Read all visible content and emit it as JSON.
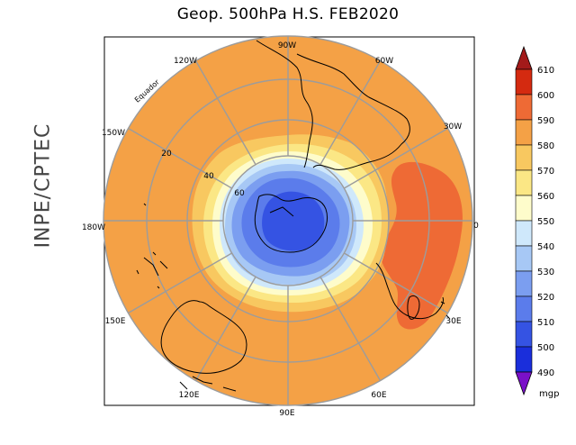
{
  "title": "Geop. 500hPa H.S. FEB2020",
  "side_label": "INPE/CPTEC",
  "equator_label": "Equador",
  "unit_label": "mgp",
  "longitude_labels": [
    "90W",
    "60W",
    "30W",
    "0",
    "30E",
    "60E",
    "90E",
    "120E",
    "150E",
    "180W",
    "150W",
    "120W"
  ],
  "latitude_labels": [
    "20",
    "40",
    "60"
  ],
  "colorbar": {
    "levels": [
      "610",
      "600",
      "590",
      "580",
      "570",
      "560",
      "550",
      "540",
      "530",
      "520",
      "510",
      "500",
      "490"
    ],
    "colors": {
      "above_610": "#a31a1a",
      "600_610": "#d42a10",
      "590_600": "#ee6a35",
      "580_590": "#f4a146",
      "570_580": "#f8c860",
      "560_570": "#fbe785",
      "550_560": "#fefccb",
      "540_550": "#cfe8fb",
      "530_540": "#a7c8f5",
      "520_530": "#7b9ef0",
      "510_520": "#5b7ceb",
      "500_510": "#3553e3",
      "490_500": "#1a2edb",
      "below_490": "#7a10c8"
    }
  },
  "map_fields": {
    "background_level_class": "580_590",
    "regions": [
      {
        "name": "590-600 high over South Atlantic / southern Africa",
        "class": "590_600"
      },
      {
        "name": "570-580 ring",
        "class": "570_580"
      },
      {
        "name": "560-570 ring",
        "class": "560_570"
      },
      {
        "name": "550-560 ring",
        "class": "550_560"
      },
      {
        "name": "540-550 ring",
        "class": "540_550"
      },
      {
        "name": "530-540 ring",
        "class": "530_540"
      },
      {
        "name": "520-530 ring",
        "class": "520_530"
      },
      {
        "name": "510-520 ring",
        "class": "510_520"
      },
      {
        "name": "500-510 core",
        "class": "500_510"
      }
    ]
  }
}
